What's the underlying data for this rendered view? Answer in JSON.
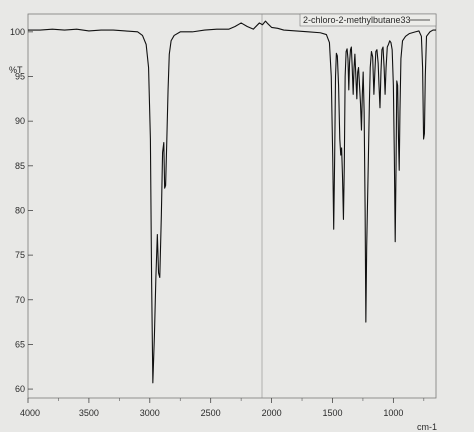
{
  "chart_data": {
    "type": "line",
    "title": "",
    "xlabel": "cm-1",
    "ylabel": "%T",
    "legend": {
      "label": "2-chloro-2-methylbutane33",
      "position": "top-right"
    },
    "xlim": [
      4000,
      650
    ],
    "ylim": [
      59,
      102
    ],
    "x_direction": "descending",
    "grid": false,
    "x_ticks": [
      4000,
      3500,
      3000,
      2500,
      2000,
      1500,
      1000
    ],
    "y_ticks": [
      60,
      65,
      70,
      75,
      80,
      85,
      90,
      95,
      100
    ],
    "series": [
      {
        "name": "2-chloro-2-methylbutane33",
        "points": [
          [
            4000,
            100.2
          ],
          [
            3900,
            100.2
          ],
          [
            3800,
            100.3
          ],
          [
            3700,
            100.2
          ],
          [
            3600,
            100.3
          ],
          [
            3500,
            100.1
          ],
          [
            3400,
            100.2
          ],
          [
            3300,
            100.2
          ],
          [
            3200,
            100.1
          ],
          [
            3100,
            100.0
          ],
          [
            3060,
            99.6
          ],
          [
            3030,
            98.6
          ],
          [
            3010,
            96.0
          ],
          [
            2995,
            88.0
          ],
          [
            2985,
            72.0
          ],
          [
            2975,
            60.7
          ],
          [
            2962,
            66.0
          ],
          [
            2950,
            72.5
          ],
          [
            2938,
            77.3
          ],
          [
            2928,
            73.0
          ],
          [
            2918,
            72.5
          ],
          [
            2905,
            79.5
          ],
          [
            2895,
            86.5
          ],
          [
            2885,
            87.6
          ],
          [
            2878,
            82.5
          ],
          [
            2870,
            82.8
          ],
          [
            2860,
            88.0
          ],
          [
            2850,
            93.5
          ],
          [
            2840,
            97.5
          ],
          [
            2825,
            99.0
          ],
          [
            2800,
            99.6
          ],
          [
            2750,
            100.0
          ],
          [
            2650,
            100.0
          ],
          [
            2550,
            100.2
          ],
          [
            2450,
            100.3
          ],
          [
            2350,
            100.3
          ],
          [
            2300,
            100.6
          ],
          [
            2250,
            101.0
          ],
          [
            2200,
            100.6
          ],
          [
            2150,
            100.3
          ],
          [
            2100,
            101.0
          ],
          [
            2075,
            100.8
          ],
          [
            2050,
            101.2
          ],
          [
            2030,
            100.9
          ],
          [
            2000,
            100.5
          ],
          [
            1950,
            100.4
          ],
          [
            1900,
            100.2
          ],
          [
            1800,
            100.1
          ],
          [
            1700,
            100.0
          ],
          [
            1600,
            99.9
          ],
          [
            1550,
            99.7
          ],
          [
            1525,
            98.8
          ],
          [
            1510,
            95.0
          ],
          [
            1498,
            86.0
          ],
          [
            1490,
            77.9
          ],
          [
            1482,
            86.0
          ],
          [
            1475,
            95.0
          ],
          [
            1468,
            97.6
          ],
          [
            1460,
            97.3
          ],
          [
            1450,
            94.0
          ],
          [
            1440,
            88.0
          ],
          [
            1432,
            86.2
          ],
          [
            1425,
            87.0
          ],
          [
            1418,
            84.0
          ],
          [
            1410,
            79.0
          ],
          [
            1403,
            85.0
          ],
          [
            1396,
            95.0
          ],
          [
            1388,
            97.8
          ],
          [
            1380,
            98.1
          ],
          [
            1373,
            97.0
          ],
          [
            1366,
            93.5
          ],
          [
            1360,
            96.5
          ],
          [
            1352,
            98.0
          ],
          [
            1345,
            98.3
          ],
          [
            1338,
            96.0
          ],
          [
            1330,
            93.0
          ],
          [
            1323,
            96.0
          ],
          [
            1316,
            97.5
          ],
          [
            1308,
            95.0
          ],
          [
            1300,
            92.5
          ],
          [
            1293,
            95.5
          ],
          [
            1286,
            96.0
          ],
          [
            1278,
            94.0
          ],
          [
            1270,
            92.0
          ],
          [
            1262,
            89.0
          ],
          [
            1255,
            93.0
          ],
          [
            1248,
            95.5
          ],
          [
            1240,
            91.0
          ],
          [
            1232,
            80.0
          ],
          [
            1226,
            67.5
          ],
          [
            1219,
            76.0
          ],
          [
            1212,
            81.0
          ],
          [
            1205,
            86.0
          ],
          [
            1197,
            92.0
          ],
          [
            1190,
            96.0
          ],
          [
            1180,
            97.8
          ],
          [
            1170,
            97.2
          ],
          [
            1160,
            93.0
          ],
          [
            1152,
            95.5
          ],
          [
            1144,
            97.8
          ],
          [
            1135,
            98.0
          ],
          [
            1125,
            96.5
          ],
          [
            1118,
            94.0
          ],
          [
            1110,
            91.5
          ],
          [
            1102,
            95.5
          ],
          [
            1094,
            98.0
          ],
          [
            1085,
            98.3
          ],
          [
            1076,
            96.0
          ],
          [
            1068,
            93.0
          ],
          [
            1060,
            96.0
          ],
          [
            1050,
            98.3
          ],
          [
            1040,
            98.6
          ],
          [
            1030,
            99.0
          ],
          [
            1020,
            98.8
          ],
          [
            1010,
            98.0
          ],
          [
            1000,
            94.0
          ],
          [
            992,
            86.0
          ],
          [
            985,
            76.5
          ],
          [
            978,
            85.0
          ],
          [
            972,
            94.5
          ],
          [
            965,
            94.0
          ],
          [
            958,
            88.0
          ],
          [
            952,
            84.5
          ],
          [
            946,
            91.0
          ],
          [
            938,
            97.0
          ],
          [
            925,
            99.0
          ],
          [
            900,
            99.5
          ],
          [
            870,
            99.8
          ],
          [
            820,
            100.0
          ],
          [
            790,
            100.1
          ],
          [
            770,
            99.5
          ],
          [
            760,
            96.0
          ],
          [
            752,
            88.0
          ],
          [
            745,
            88.6
          ],
          [
            738,
            95.0
          ],
          [
            728,
            99.5
          ],
          [
            700,
            100.0
          ],
          [
            675,
            100.2
          ],
          [
            650,
            100.2
          ]
        ]
      }
    ]
  }
}
